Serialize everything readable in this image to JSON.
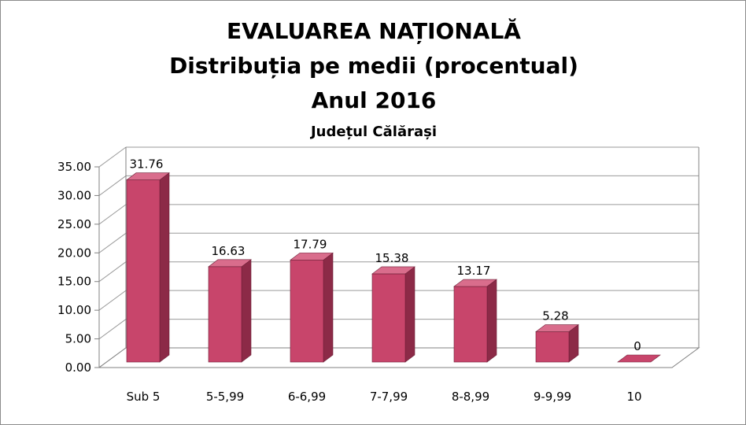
{
  "chart_data": {
    "type": "bar",
    "title": "EVALUAREA NAȚIONALĂ",
    "title_line2": "Distribuția pe medii (procentual)",
    "title_line3": "Anul 2016",
    "subtitle": "Județul Călărași",
    "categories": [
      "Sub 5",
      "5-5,99",
      "6-6,99",
      "7-7,99",
      "8-8,99",
      "9-9,99",
      "10"
    ],
    "values": [
      31.76,
      16.63,
      17.79,
      15.38,
      13.17,
      5.28,
      0
    ],
    "value_labels": [
      "31.76",
      "16.63",
      "17.79",
      "15.38",
      "13.17",
      "5.28",
      "0"
    ],
    "y_ticks": [
      "0.00",
      "5.00",
      "10.00",
      "15.00",
      "20.00",
      "25.00",
      "30.00",
      "35.00"
    ],
    "ylim": [
      0,
      35
    ],
    "grid": true,
    "style": "3d-column",
    "colors": {
      "bar_front": "#c8456b",
      "bar_side": "#8c2a47",
      "bar_top": "#d96d8c",
      "grid": "#9a9a9a",
      "axis": "#808080"
    }
  }
}
